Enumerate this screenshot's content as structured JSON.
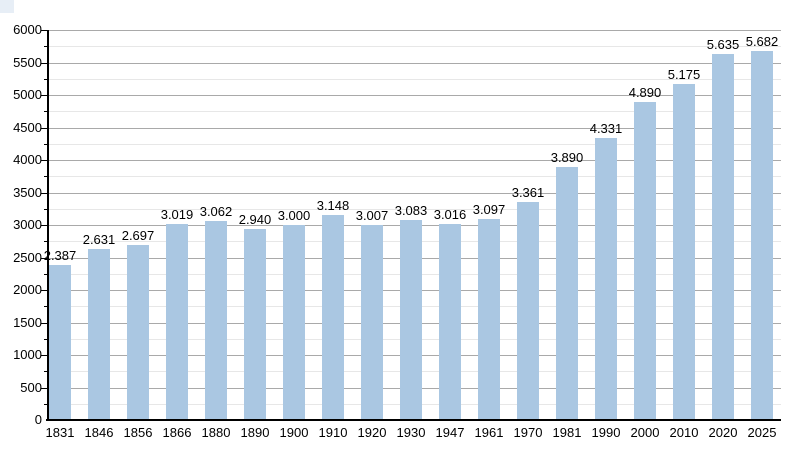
{
  "chart_data": {
    "type": "bar",
    "title": "",
    "xlabel": "",
    "ylabel": "",
    "categories": [
      "1831",
      "1846",
      "1856",
      "1866",
      "1880",
      "1890",
      "1900",
      "1910",
      "1920",
      "1930",
      "1947",
      "1961",
      "1970",
      "1981",
      "1990",
      "2000",
      "2010",
      "2020",
      "2025"
    ],
    "values": [
      2387,
      2631,
      2697,
      3019,
      3062,
      2940,
      3000,
      3148,
      3007,
      3083,
      3016,
      3097,
      3361,
      3890,
      4331,
      4890,
      5175,
      5635,
      5682
    ],
    "value_labels": [
      "2.387",
      "2.631",
      "2.697",
      "3.019",
      "3.062",
      "2.940",
      "3.000",
      "3.148",
      "3.007",
      "3.083",
      "3.016",
      "3.097",
      "3.361",
      "3.890",
      "4.331",
      "4.890",
      "5.175",
      "5.635",
      "5.682"
    ],
    "ylim": [
      0,
      6000
    ],
    "ytick_step": 500,
    "minor_ytick_step": 250,
    "ytick_labels": [
      "0",
      "500",
      "1000",
      "1500",
      "2000",
      "2500",
      "3000",
      "3500",
      "4000",
      "4500",
      "5000",
      "5500",
      "6000"
    ],
    "grid": true,
    "legend": "none",
    "bar_color": "#aac7e2",
    "major_grid_color": "#a9a9a9",
    "minor_grid_color": "#e7e7e7",
    "axis_color": "#000000",
    "text_color": "#000000",
    "background_color": "#ffffff",
    "corner_artifact_color": "#e7eef6"
  }
}
